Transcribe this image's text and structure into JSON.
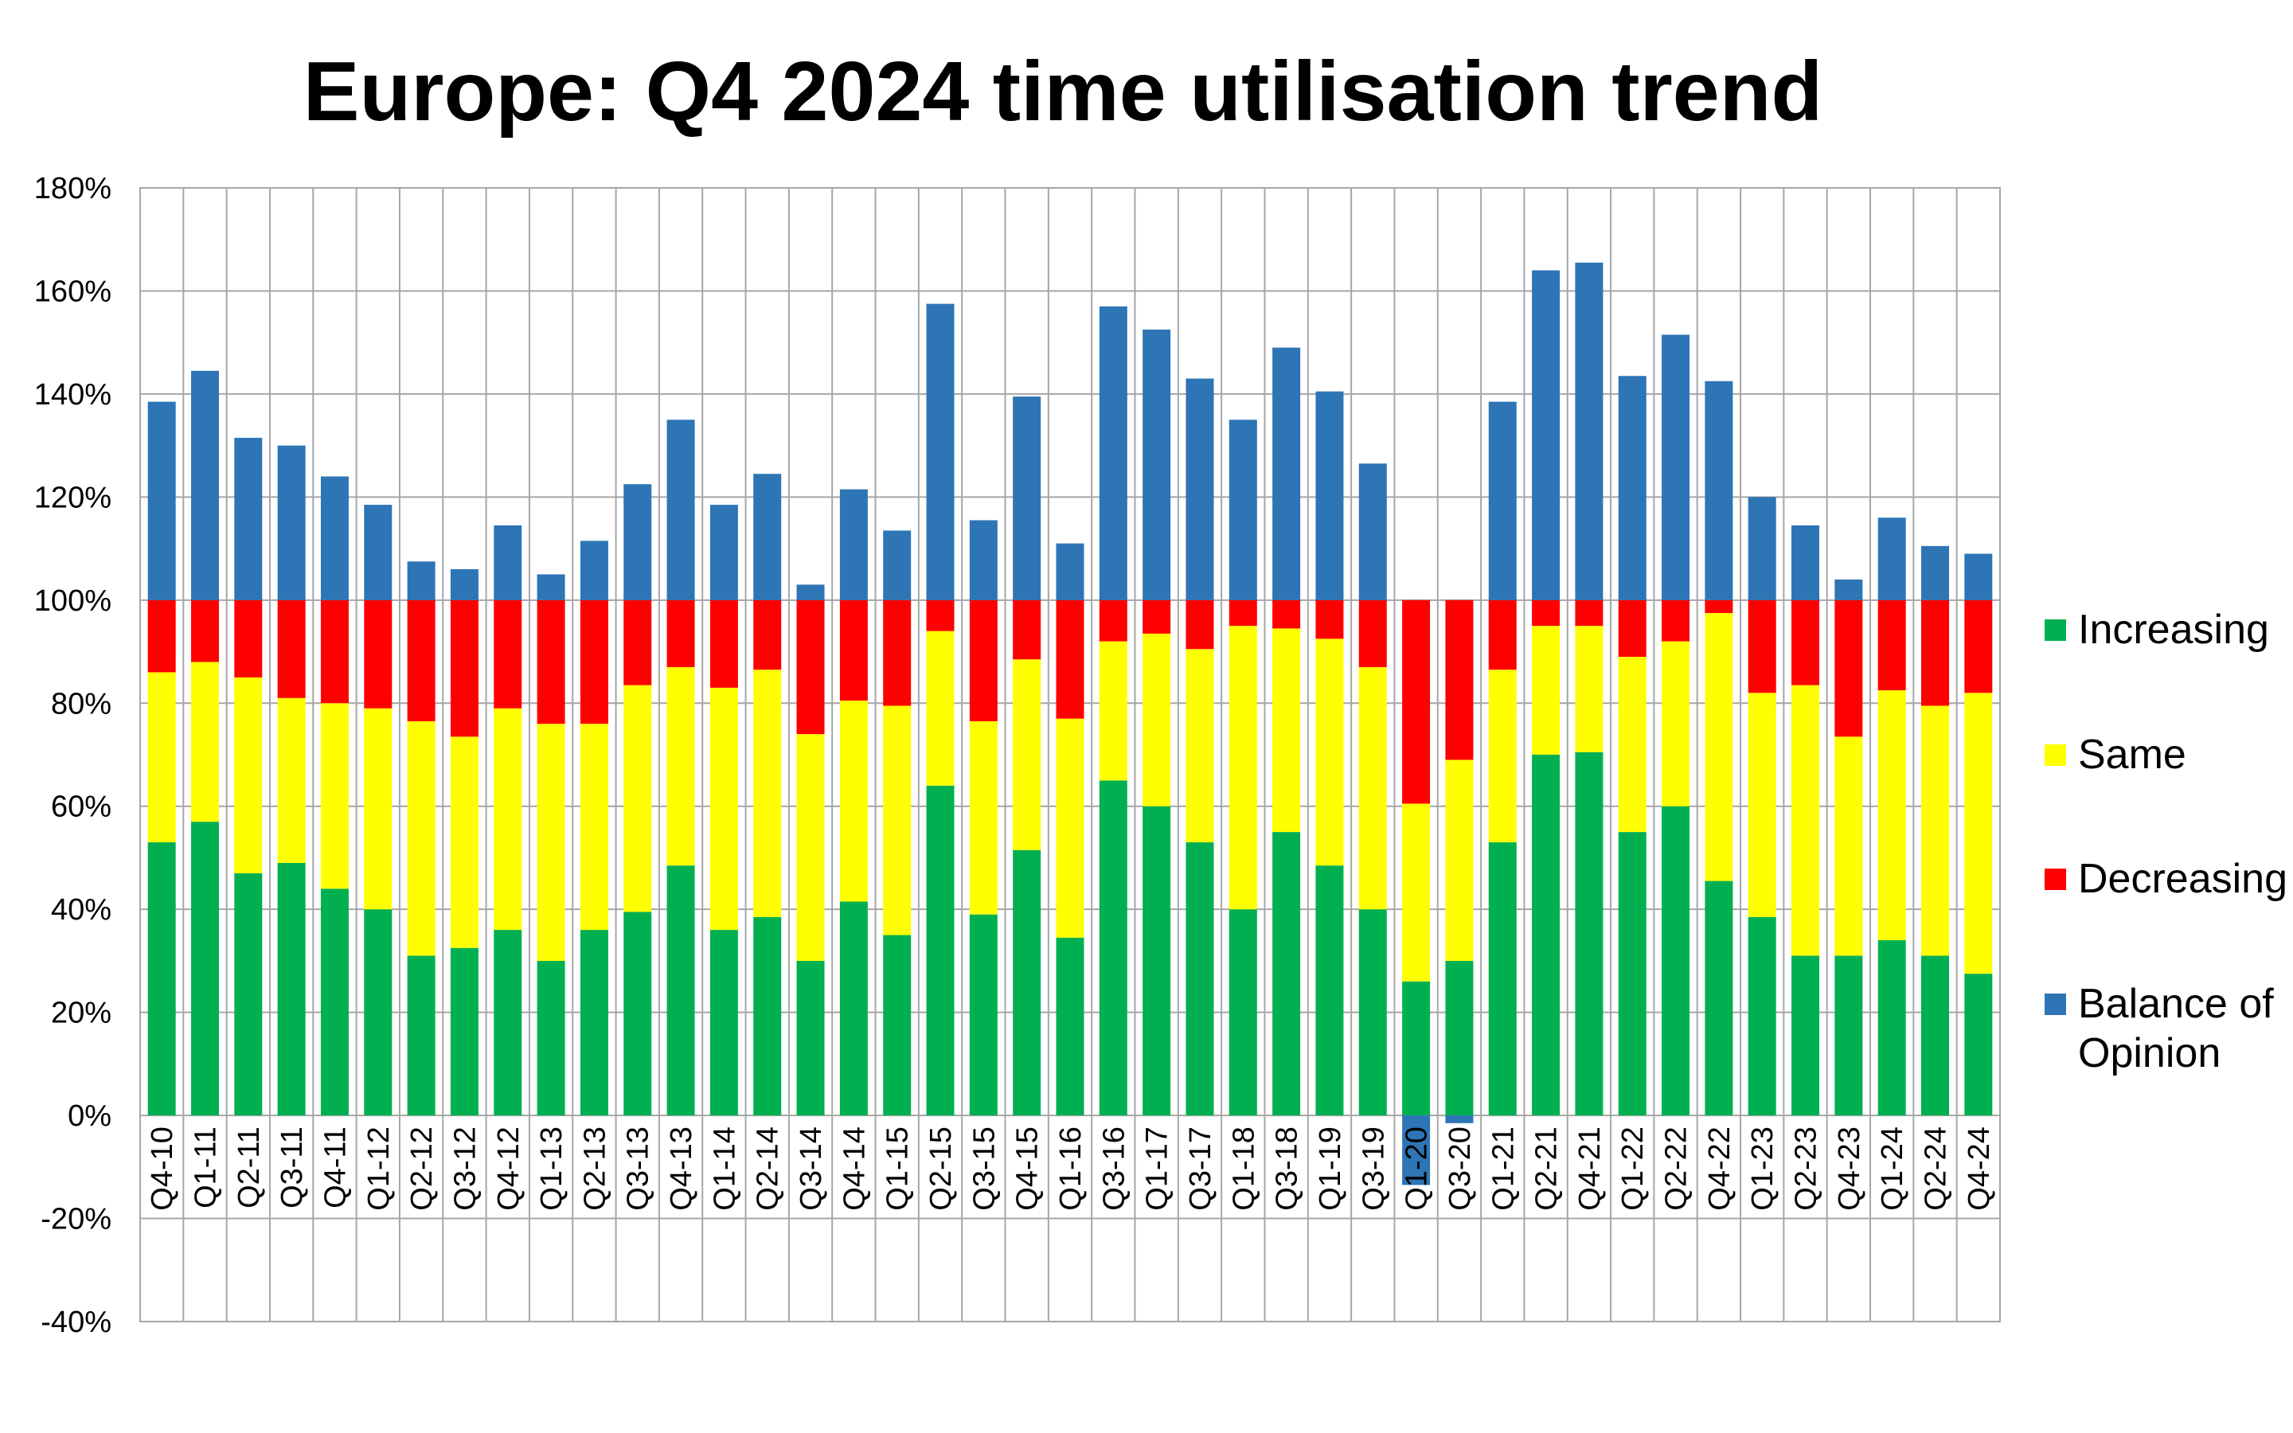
{
  "chart_data": {
    "type": "bar",
    "stacked": true,
    "title": "Europe: Q4 2024 time utilisation trend",
    "xlabel": "",
    "ylabel": "",
    "ylim": [
      -40,
      180
    ],
    "yticks": [
      "180%",
      "160%",
      "140%",
      "120%",
      "100%",
      "80%",
      "60%",
      "40%",
      "20%",
      "0%",
      "-20%",
      "-40%"
    ],
    "grid": true,
    "legend_position": "right",
    "categories": [
      "Q4-10",
      "Q1-11",
      "Q2-11",
      "Q3-11",
      "Q4-11",
      "Q1-12",
      "Q2-12",
      "Q3-12",
      "Q4-12",
      "Q1-13",
      "Q2-13",
      "Q3-13",
      "Q4-13",
      "Q1-14",
      "Q2-14",
      "Q3-14",
      "Q4-14",
      "Q1-15",
      "Q2-15",
      "Q3-15",
      "Q4-15",
      "Q1-16",
      "Q3-16",
      "Q1-17",
      "Q3-17",
      "Q1-18",
      "Q3-18",
      "Q1-19",
      "Q3-19",
      "Q1-20",
      "Q3-20",
      "Q1-21",
      "Q2-21",
      "Q4-21",
      "Q1-22",
      "Q2-22",
      "Q4-22",
      "Q1-23",
      "Q2-23",
      "Q4-23",
      "Q1-24",
      "Q2-24",
      "Q4-24"
    ],
    "series": [
      {
        "name": "Increasing",
        "color": "#00b050",
        "values": [
          53,
          57,
          47,
          49,
          44,
          40,
          31,
          32.5,
          36,
          30,
          36,
          39.5,
          48.5,
          36,
          38.5,
          30,
          41.5,
          35,
          64,
          39,
          51.5,
          34.5,
          65,
          60,
          53,
          40,
          55,
          48.5,
          40,
          26,
          30,
          53,
          70,
          70.5,
          55,
          60,
          45.5,
          38.5,
          31,
          31,
          34,
          31,
          27.5
        ]
      },
      {
        "name": "Same",
        "color": "#ffff00",
        "values": [
          33,
          31,
          38,
          32,
          36,
          39,
          45.5,
          41,
          43,
          46,
          40,
          44,
          38.5,
          47,
          48,
          44,
          39,
          44.5,
          30,
          37.5,
          37,
          42.5,
          27,
          33.5,
          37.5,
          55,
          39.5,
          44,
          47,
          34.5,
          39,
          33.5,
          25,
          24.5,
          34,
          32,
          52,
          43.5,
          52.5,
          42.5,
          48.5,
          48.5,
          54.5
        ]
      },
      {
        "name": "Decreasing",
        "color": "#ff0000",
        "values": [
          14,
          12,
          15,
          19,
          20,
          21,
          23.5,
          26.5,
          21,
          24,
          24,
          16.5,
          13,
          17,
          13.5,
          26,
          19.5,
          20.5,
          6,
          23.5,
          11.5,
          23,
          8,
          6.5,
          9.5,
          5,
          5.5,
          7.5,
          13,
          39.5,
          31,
          13.5,
          5,
          5,
          11,
          8,
          2.5,
          18,
          16.5,
          26.5,
          17.5,
          20.5,
          18
        ]
      },
      {
        "name": "Balance of Opinion",
        "color": "#2e75b6",
        "values": [
          38.5,
          44.5,
          31.5,
          30,
          24,
          18.5,
          7.5,
          6,
          14.5,
          5,
          11.5,
          22.5,
          35,
          18.5,
          24.5,
          3,
          21.5,
          13.5,
          57.5,
          15.5,
          39.5,
          11,
          57,
          52.5,
          43,
          35,
          49,
          40.5,
          26.5,
          -13.5,
          -1.5,
          38.5,
          64,
          65.5,
          43.5,
          51.5,
          42.5,
          20,
          14.5,
          4,
          16,
          10.5,
          9
        ]
      }
    ]
  }
}
